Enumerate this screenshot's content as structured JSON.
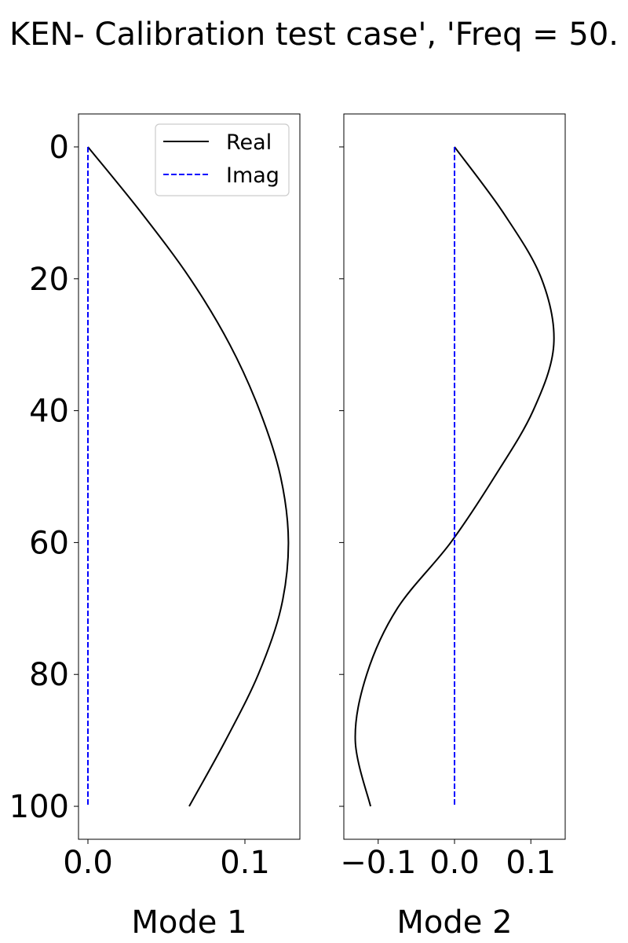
{
  "chart_data": {
    "type": "line",
    "title": "KEN- Calibration test case', 'Freq = 50.",
    "y_axis": {
      "range": [
        105,
        -5
      ],
      "ticks": [
        0,
        20,
        40,
        60,
        80,
        100
      ],
      "tick_labels": [
        "0",
        "20",
        "40",
        "60",
        "80",
        "100"
      ],
      "inverted": true
    },
    "legend": {
      "location": "upper right",
      "entries": [
        {
          "label": "Real",
          "color": "#000000",
          "style": "solid"
        },
        {
          "label": "Imag",
          "color": "#0000ff",
          "style": "dashed"
        }
      ]
    },
    "panels": [
      {
        "xlabel": "Mode 1",
        "xlim": [
          -0.006,
          0.135
        ],
        "x_ticks": [
          0.0,
          0.1
        ],
        "x_tick_labels": [
          "0.0",
          "0.1"
        ],
        "has_legend": true,
        "series": [
          {
            "name": "Real",
            "depth": [
              0,
              10,
              20,
              30,
              40,
              50,
              60,
              70,
              80,
              90,
              100
            ],
            "values": [
              0.0,
              0.0341,
              0.0652,
              0.0904,
              0.1094,
              0.1227,
              0.1277,
              0.1229,
              0.1085,
              0.0877,
              0.0645
            ]
          },
          {
            "name": "Imag",
            "depth": [
              0,
              100
            ],
            "values": [
              0.0,
              0.0
            ]
          }
        ]
      },
      {
        "xlabel": "Mode 2",
        "xlim": [
          -0.145,
          0.145
        ],
        "x_ticks": [
          -0.1,
          0.0,
          0.1
        ],
        "x_tick_labels": [
          "−0.1",
          "0.0",
          "0.1"
        ],
        "has_legend": false,
        "series": [
          {
            "name": "Real",
            "depth": [
              0,
              10,
              20,
              30,
              40,
              50,
              60,
              70,
              80,
              90,
              100
            ],
            "values": [
              0.0,
              0.064,
              0.114,
              0.13,
              0.103,
              0.0526,
              -0.005,
              -0.075,
              -0.115,
              -0.13,
              -0.11
            ]
          },
          {
            "name": "Imag",
            "depth": [
              0,
              100
            ],
            "values": [
              0.0,
              0.0
            ]
          }
        ]
      }
    ]
  }
}
